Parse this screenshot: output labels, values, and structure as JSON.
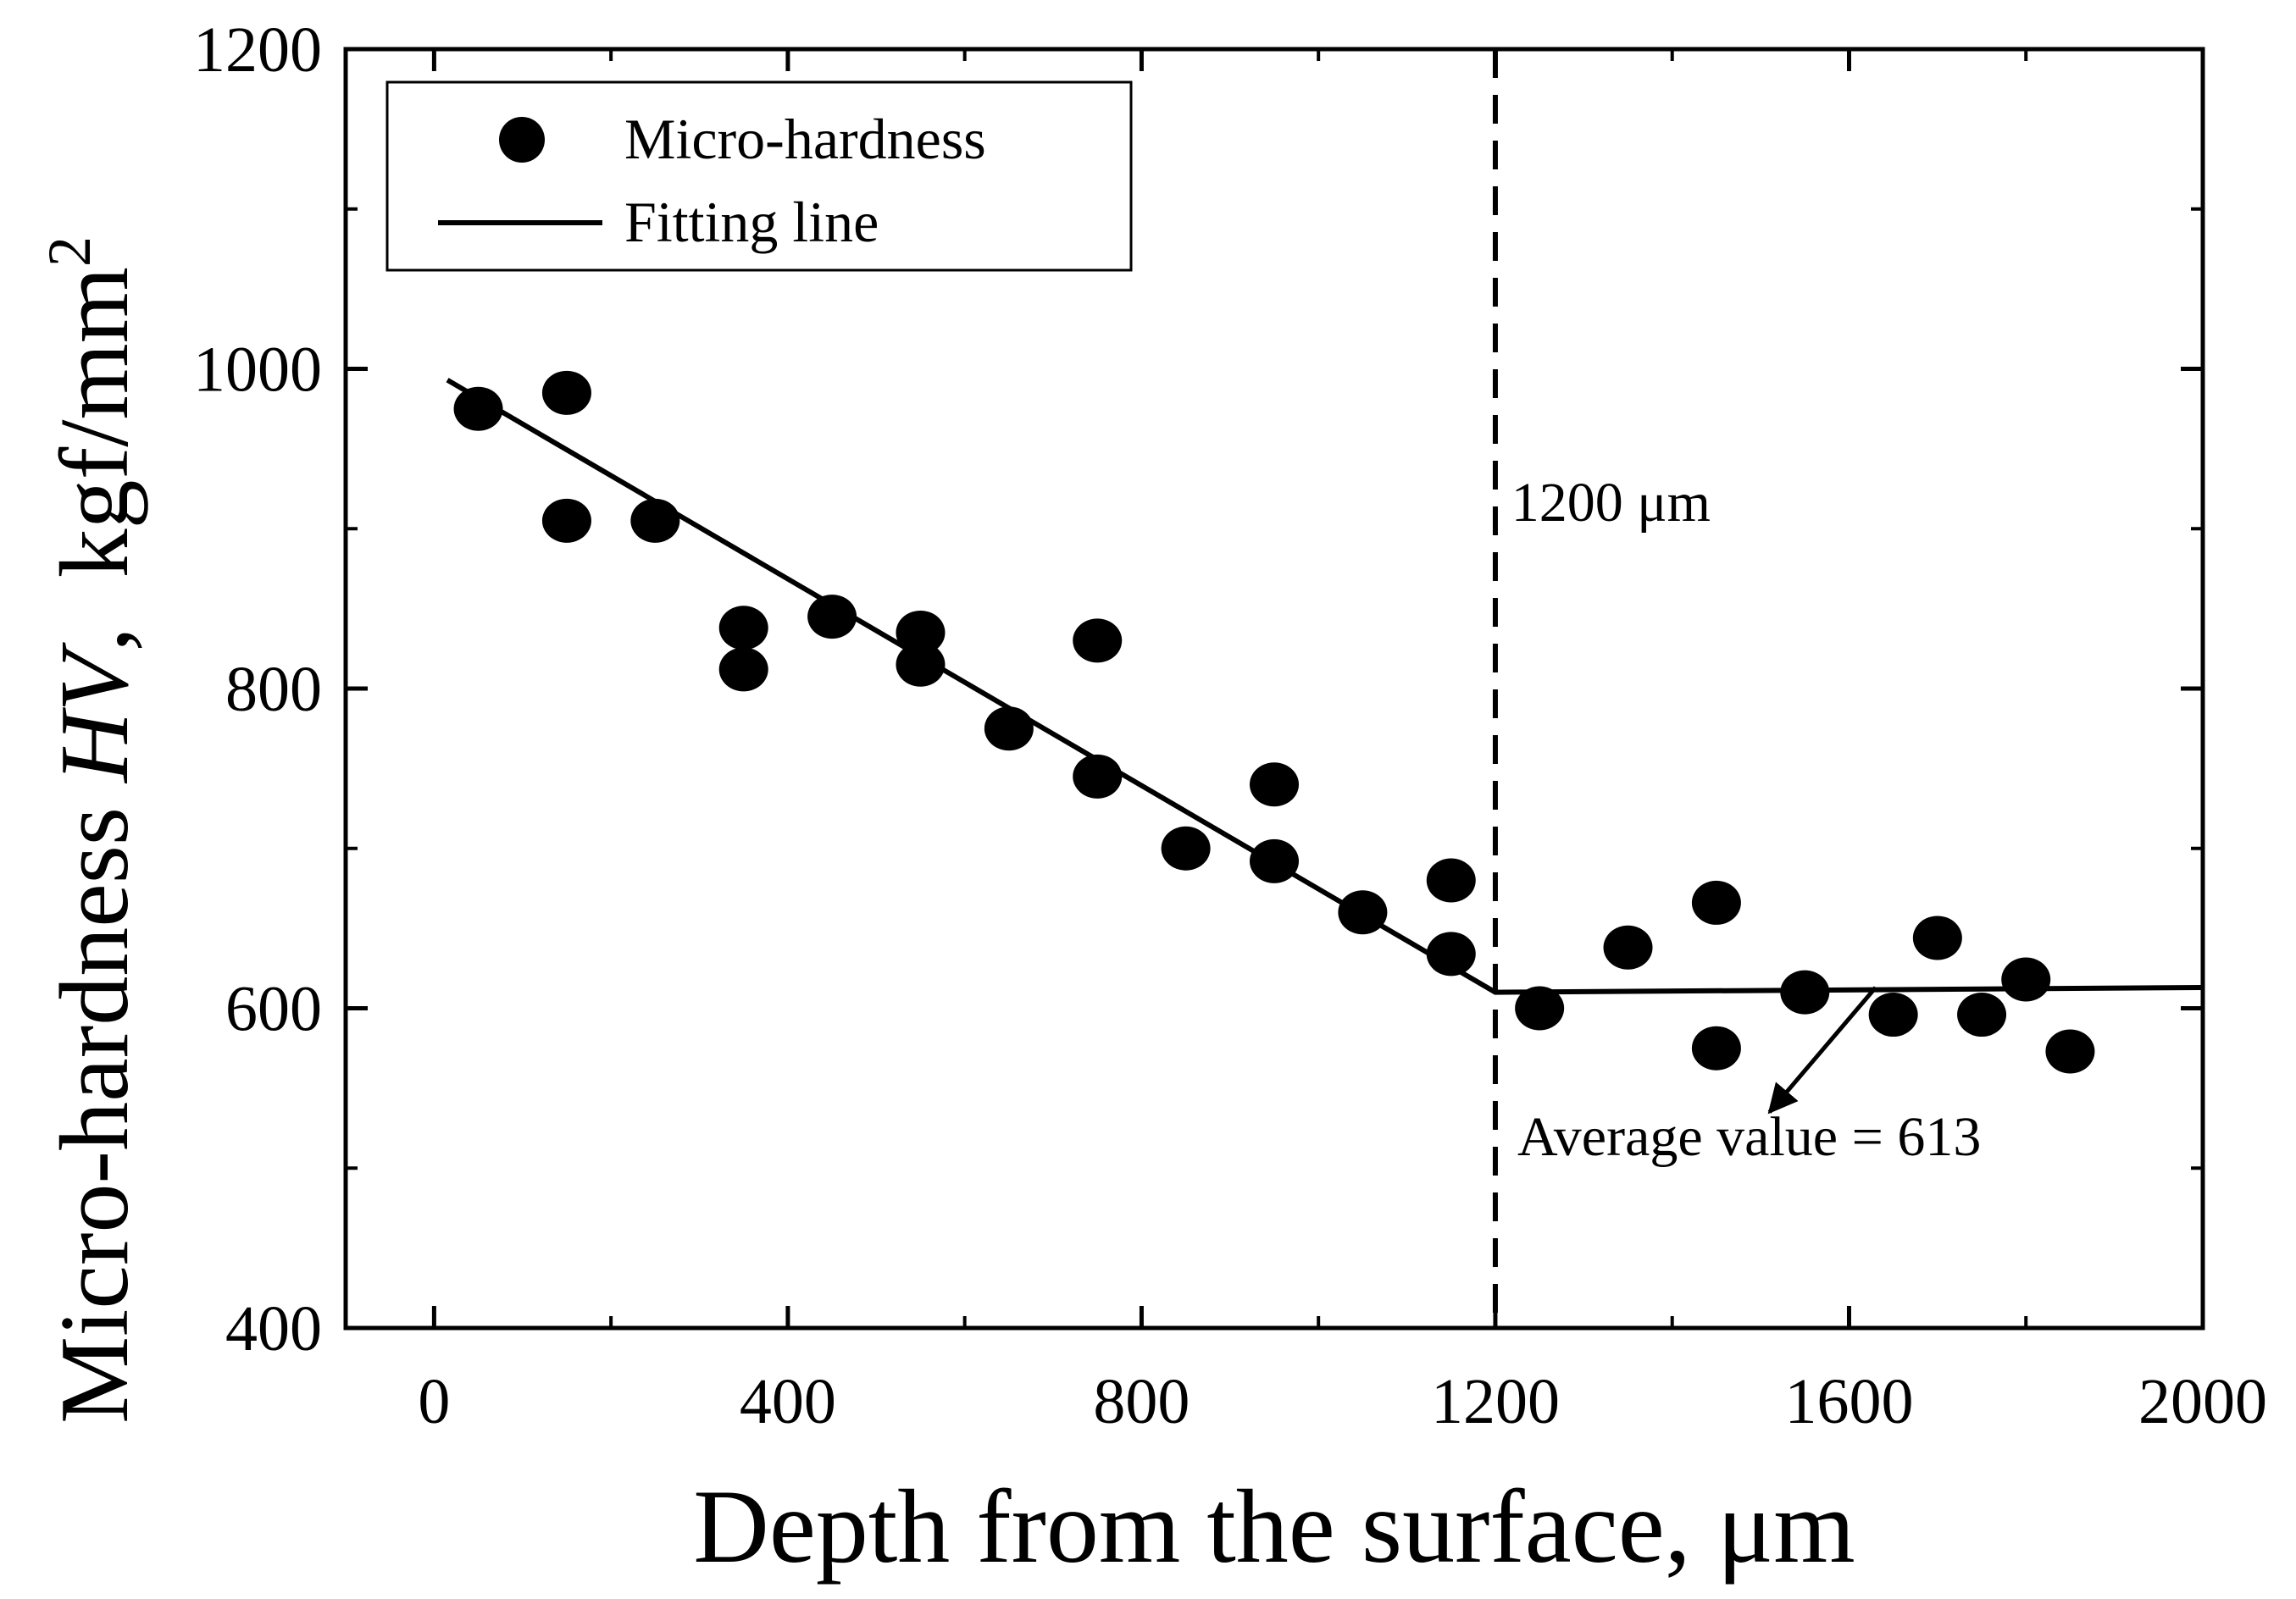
{
  "chart_data": {
    "type": "scatter",
    "title": "",
    "xlabel": "Depth from the surface, μm",
    "ylabel_parts": {
      "prefix": "Micro-hardness ",
      "symbol": "HV",
      "sep": ",  ",
      "unit": "kgf/mm",
      "unit_exp": "2"
    },
    "xlim": [
      -100,
      2000
    ],
    "ylim": [
      400,
      1200
    ],
    "xticks": [
      0,
      400,
      800,
      1200,
      1600,
      2000
    ],
    "yticks": [
      400,
      600,
      800,
      1000,
      1200
    ],
    "xtick_labels": [
      "0",
      "400",
      "800",
      "1200",
      "1600",
      "2000"
    ],
    "ytick_labels": [
      "400",
      "600",
      "800",
      "1000",
      "1200"
    ],
    "legend": {
      "position": "top-left",
      "items": [
        {
          "label": "Micro-hardness",
          "marker": "circle"
        },
        {
          "label": "Fitting line",
          "marker": "line"
        }
      ]
    },
    "series": [
      {
        "name": "Micro-hardness",
        "type": "scatter",
        "points": [
          [
            50,
            975
          ],
          [
            150,
            985
          ],
          [
            150,
            905
          ],
          [
            250,
            905
          ],
          [
            350,
            838
          ],
          [
            350,
            812
          ],
          [
            450,
            845
          ],
          [
            550,
            835
          ],
          [
            550,
            815
          ],
          [
            650,
            775
          ],
          [
            750,
            830
          ],
          [
            750,
            745
          ],
          [
            850,
            700
          ],
          [
            950,
            740
          ],
          [
            950,
            692
          ],
          [
            1050,
            660
          ],
          [
            1150,
            680
          ],
          [
            1150,
            634
          ],
          [
            1250,
            600
          ],
          [
            1350,
            638
          ],
          [
            1450,
            666
          ],
          [
            1450,
            575
          ],
          [
            1550,
            610
          ],
          [
            1650,
            596
          ],
          [
            1700,
            644
          ],
          [
            1750,
            596
          ],
          [
            1800,
            618
          ],
          [
            1850,
            573
          ]
        ]
      },
      {
        "name": "Fitting line",
        "type": "line",
        "points": [
          [
            15,
            993
          ],
          [
            1200,
            610
          ],
          [
            2000,
            613
          ]
        ]
      }
    ],
    "annotations": {
      "vline_x": 1200,
      "vline_label": "1200 μm",
      "vline_label_pos": [
        1218,
        905
      ],
      "average_label": "Average value = 613",
      "average_label_pos": [
        1225,
        508
      ],
      "arrow_from": [
        1630,
        613
      ],
      "arrow_to": [
        1510,
        535
      ]
    }
  }
}
